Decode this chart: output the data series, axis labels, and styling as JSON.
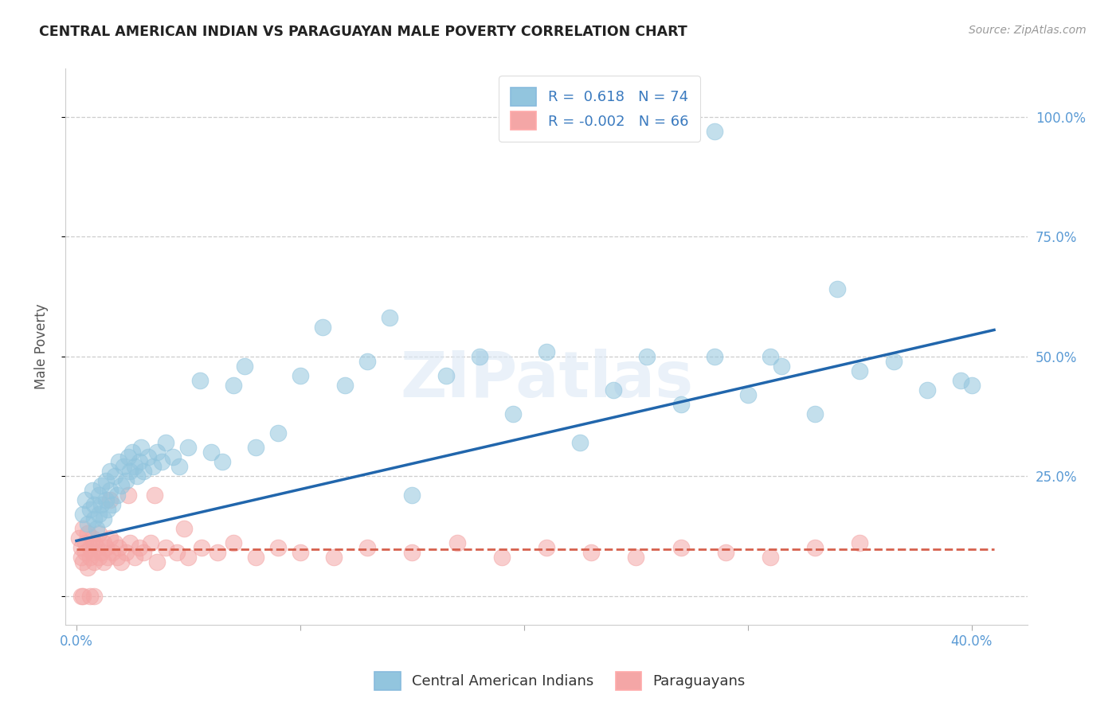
{
  "title": "CENTRAL AMERICAN INDIAN VS PARAGUAYAN MALE POVERTY CORRELATION CHART",
  "source": "Source: ZipAtlas.com",
  "ylabel": "Male Poverty",
  "xlim": [
    -0.005,
    0.425
  ],
  "ylim": [
    -0.06,
    1.1
  ],
  "x_tick_positions": [
    0.0,
    0.1,
    0.2,
    0.3,
    0.4
  ],
  "x_tick_labels": [
    "0.0%",
    "",
    "",
    "",
    "40.0%"
  ],
  "y_tick_positions": [
    0.0,
    0.25,
    0.5,
    0.75,
    1.0
  ],
  "y_tick_labels": [
    "",
    "25.0%",
    "50.0%",
    "75.0%",
    "100.0%"
  ],
  "blue_color": "#92c5de",
  "pink_color": "#f4a6a6",
  "line_blue": "#2166ac",
  "line_pink": "#d6604d",
  "watermark_text": "ZIPatlas",
  "legend_label1": "Central American Indians",
  "legend_label2": "Paraguayans",
  "legend_R1": "R =  0.618",
  "legend_N1": "N = 74",
  "legend_R2": "R = -0.002",
  "legend_N2": "N = 66",
  "blue_x": [
    0.003,
    0.004,
    0.005,
    0.006,
    0.007,
    0.008,
    0.008,
    0.009,
    0.01,
    0.01,
    0.011,
    0.011,
    0.012,
    0.013,
    0.013,
    0.014,
    0.015,
    0.015,
    0.016,
    0.017,
    0.018,
    0.019,
    0.02,
    0.021,
    0.022,
    0.023,
    0.024,
    0.025,
    0.026,
    0.027,
    0.028,
    0.029,
    0.03,
    0.032,
    0.034,
    0.036,
    0.038,
    0.04,
    0.043,
    0.046,
    0.05,
    0.055,
    0.06,
    0.065,
    0.07,
    0.075,
    0.08,
    0.09,
    0.1,
    0.11,
    0.12,
    0.13,
    0.14,
    0.15,
    0.165,
    0.18,
    0.195,
    0.21,
    0.225,
    0.24,
    0.255,
    0.27,
    0.285,
    0.3,
    0.315,
    0.33,
    0.35,
    0.365,
    0.38,
    0.395,
    0.285,
    0.31,
    0.34,
    0.4
  ],
  "blue_y": [
    0.17,
    0.2,
    0.15,
    0.18,
    0.22,
    0.16,
    0.19,
    0.14,
    0.21,
    0.17,
    0.23,
    0.19,
    0.16,
    0.24,
    0.2,
    0.18,
    0.26,
    0.22,
    0.19,
    0.25,
    0.21,
    0.28,
    0.23,
    0.27,
    0.24,
    0.29,
    0.26,
    0.3,
    0.27,
    0.25,
    0.28,
    0.31,
    0.26,
    0.29,
    0.27,
    0.3,
    0.28,
    0.32,
    0.29,
    0.27,
    0.31,
    0.45,
    0.3,
    0.28,
    0.44,
    0.48,
    0.31,
    0.34,
    0.46,
    0.56,
    0.44,
    0.49,
    0.58,
    0.21,
    0.46,
    0.5,
    0.38,
    0.51,
    0.32,
    0.43,
    0.5,
    0.4,
    0.5,
    0.42,
    0.48,
    0.38,
    0.47,
    0.49,
    0.43,
    0.45,
    0.97,
    0.5,
    0.64,
    0.44
  ],
  "pink_x": [
    0.001,
    0.002,
    0.002,
    0.003,
    0.003,
    0.004,
    0.004,
    0.005,
    0.005,
    0.006,
    0.006,
    0.007,
    0.007,
    0.008,
    0.008,
    0.009,
    0.01,
    0.01,
    0.011,
    0.012,
    0.012,
    0.013,
    0.014,
    0.015,
    0.016,
    0.017,
    0.018,
    0.019,
    0.02,
    0.022,
    0.024,
    0.026,
    0.028,
    0.03,
    0.033,
    0.036,
    0.04,
    0.045,
    0.05,
    0.056,
    0.063,
    0.07,
    0.08,
    0.09,
    0.1,
    0.115,
    0.13,
    0.15,
    0.17,
    0.19,
    0.21,
    0.23,
    0.25,
    0.27,
    0.29,
    0.31,
    0.33,
    0.35,
    0.023,
    0.035,
    0.048,
    0.015,
    0.008,
    0.006,
    0.003,
    0.002
  ],
  "pink_y": [
    0.12,
    0.1,
    0.08,
    0.14,
    0.07,
    0.11,
    0.09,
    0.13,
    0.06,
    0.1,
    0.08,
    0.12,
    0.09,
    0.07,
    0.11,
    0.1,
    0.08,
    0.13,
    0.09,
    0.11,
    0.07,
    0.1,
    0.08,
    0.12,
    0.09,
    0.11,
    0.08,
    0.1,
    0.07,
    0.09,
    0.11,
    0.08,
    0.1,
    0.09,
    0.11,
    0.07,
    0.1,
    0.09,
    0.08,
    0.1,
    0.09,
    0.11,
    0.08,
    0.1,
    0.09,
    0.08,
    0.1,
    0.09,
    0.11,
    0.08,
    0.1,
    0.09,
    0.08,
    0.1,
    0.09,
    0.08,
    0.1,
    0.11,
    0.21,
    0.21,
    0.14,
    0.2,
    0.0,
    0.0,
    0.0,
    0.0
  ],
  "blue_line_x": [
    0.0,
    0.41
  ],
  "blue_line_y": [
    0.115,
    0.555
  ],
  "pink_line_x": [
    0.0,
    0.41
  ],
  "pink_line_y": [
    0.098,
    0.098
  ]
}
